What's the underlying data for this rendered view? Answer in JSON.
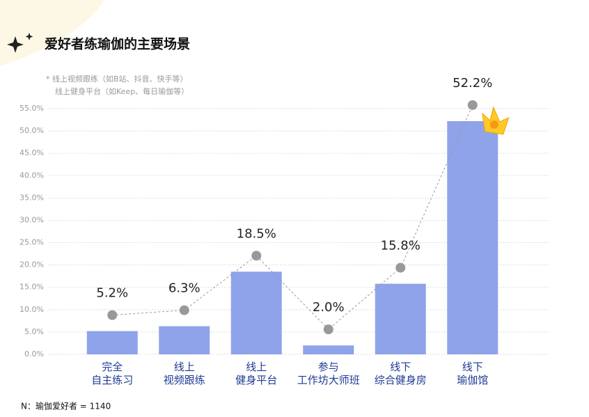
{
  "chart_data": {
    "type": "bar",
    "title": "爱好者练瑜伽的主要场景",
    "notes": [
      "* 线上视频跟练（如B站、抖音、快手等）",
      "线上健身平台（如Keep、每日瑜伽等）"
    ],
    "footnote": "N：瑜伽爱好者 = 1140",
    "categories": [
      "完全\n自主练习",
      "线上\n视频跟练",
      "线上\n健身平台",
      "参与\n工作坊大师班",
      "线下\n综合健身房",
      "线下\n瑜伽馆"
    ],
    "values": [
      5.2,
      6.3,
      18.5,
      2.0,
      15.8,
      52.2
    ],
    "value_labels": [
      "5.2%",
      "6.3%",
      "18.5%",
      "2.0%",
      "15.8%",
      "52.2%"
    ],
    "color": "#8fa3ea",
    "ylim": [
      0,
      55
    ],
    "yticks": [
      {
        "value": 0,
        "label": "0.0%"
      },
      {
        "value": 5,
        "label": "5.0%"
      },
      {
        "value": 10,
        "label": "10.0%"
      },
      {
        "value": 15,
        "label": "15.0%"
      },
      {
        "value": 20,
        "label": "20.0%"
      },
      {
        "value": 25,
        "label": "25.0%"
      },
      {
        "value": 30,
        "label": "30.0%"
      },
      {
        "value": 35,
        "label": "35.0%"
      },
      {
        "value": 40,
        "label": "40.0%"
      },
      {
        "value": 45,
        "label": "45.0%"
      },
      {
        "value": 50,
        "label": "50.0%"
      },
      {
        "value": 55,
        "label": "55.0%"
      }
    ],
    "grid": true
  }
}
